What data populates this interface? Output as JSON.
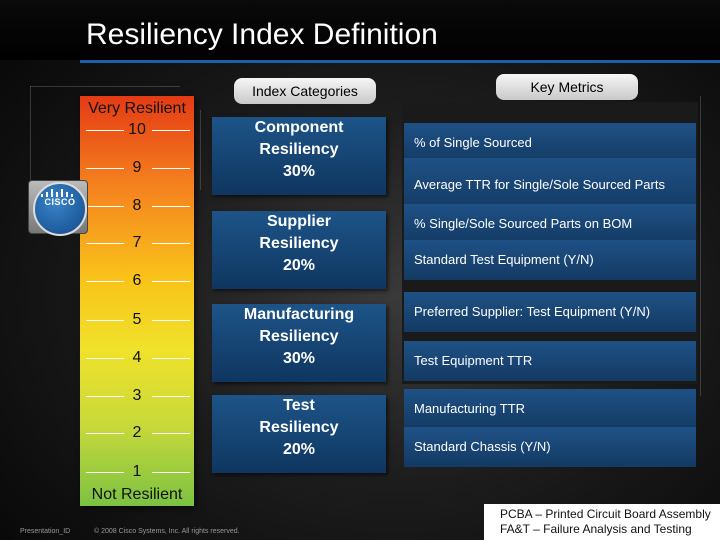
{
  "title": "Resiliency Index Definition",
  "scale": {
    "top_label": "Very Resilient",
    "ticks": [
      "10",
      "9",
      "8",
      "7",
      "6",
      "5",
      "4",
      "3",
      "2",
      "1"
    ],
    "bottom_label": "Not Resilient"
  },
  "logo": {
    "text": "CISCO"
  },
  "categories": {
    "header": "Index Categories",
    "items": [
      {
        "name_line1": "Component",
        "name_line2": "Resiliency",
        "weight": "30%"
      },
      {
        "name_line1": "Supplier",
        "name_line2": "Resiliency",
        "weight": "20%"
      },
      {
        "name_line1": "Manufacturing",
        "name_line2": "Resiliency",
        "weight": "30%"
      },
      {
        "name_line1": "Test",
        "name_line2": "Resiliency",
        "weight": "20%"
      }
    ]
  },
  "metrics": {
    "header": "Key Metrics",
    "items": [
      "% of Single Sourced",
      "Average TTR for Single/Sole Sourced Parts",
      "% Single/Sole Sourced Parts on BOM",
      "Standard Test Equipment (Y/N)",
      "Preferred Supplier: Test Equipment (Y/N)",
      "Test Equipment TTR",
      "Manufacturing TTR",
      "Standard Chassis (Y/N)"
    ]
  },
  "footer": {
    "presentation_id": "Presentation_ID",
    "copyright": "© 2008 Cisco Systems, Inc. All rights reserved.",
    "note_line1": "PCBA – Printed Circuit Board Assembly",
    "note_line2": "FA&T – Failure Analysis and Testing"
  }
}
